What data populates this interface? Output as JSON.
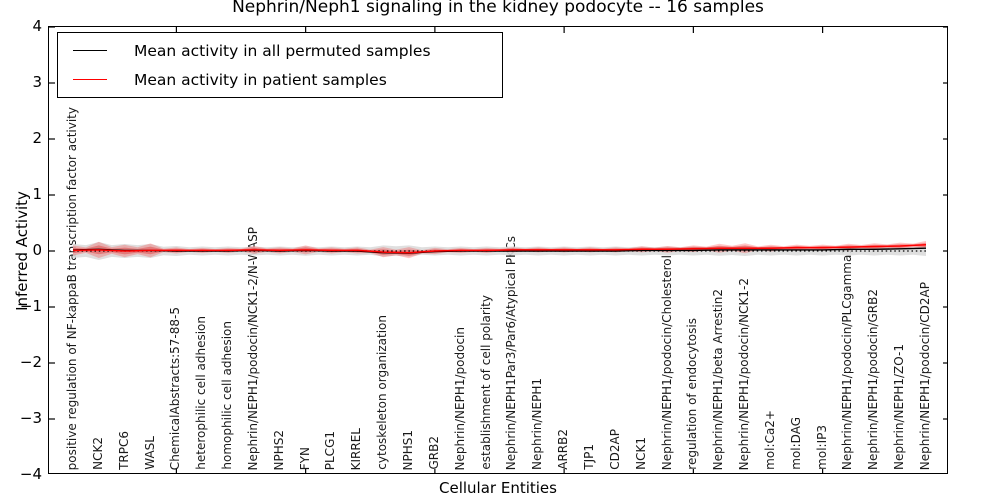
{
  "figure": {
    "title": "Nephrin/Neph1 signaling in the kidney podocyte -- 16 samples",
    "xlabel": "Cellular Entities",
    "ylabel": "Inferred Activity"
  },
  "legend": {
    "items": [
      {
        "label": "Mean activity in all permuted samples",
        "color": "#000000"
      },
      {
        "label": "Mean activity in patient samples",
        "color": "#ff0000"
      }
    ]
  },
  "colors": {
    "permuted_band": "#dcdcdc",
    "patient_fill": "#ff0000",
    "patient_line": "#ff0000",
    "permuted_line": "#000000",
    "zero_line": "#000000",
    "axis": "#000000"
  },
  "chart_data": {
    "type": "line",
    "subtype": "violin-band-with-mean-lines",
    "title": "Nephrin/Neph1 signaling in the kidney podocyte -- 16 samples",
    "xlabel": "Cellular Entities",
    "ylabel": "Inferred Activity",
    "ylim": [
      -4,
      4
    ],
    "yticks": [
      "4",
      "3",
      "2",
      "1",
      "0",
      "−1",
      "−2",
      "−3",
      "−4"
    ],
    "ytick_values": [
      4,
      3,
      2,
      1,
      0,
      -1,
      -2,
      -3,
      -4
    ],
    "xtick_values": [
      5,
      10,
      15,
      20,
      25,
      30
    ],
    "grid": false,
    "legend_position": "upper left",
    "zero_reference_line": {
      "y": 0,
      "style": "dotted",
      "color": "#000000"
    },
    "categories": [
      "positive regulation of NF-kappaB transcription factor activity",
      "NCK2",
      "TRPC6",
      "WASL",
      "ChemicalAbstracts:57-88-5",
      "heterophilic cell adhesion",
      "homophilic cell adhesion",
      "Nephrin/NEPH1/podocin/NCK1-2/N-WASP",
      "NPHS2",
      "FYN",
      "PLCG1",
      "KIRREL",
      "cytoskeleton organization",
      "NPHS1",
      "GRB2",
      "Nephrin/NEPH1/podocin",
      "establishment of cell polarity",
      "Nephrin/NEPH1Par3/Par6/Atypical PKCs",
      "Nephrin/NEPH1",
      "ARRB2",
      "TJP1",
      "CD2AP",
      "NCK1",
      "Nephrin/NEPH1/podocin/Cholesterol",
      "regulation of endocytosis",
      "Nephrin/NEPH1/beta Arrestin2",
      "Nephrin/NEPH1/podocin/NCK1-2",
      "mol:Ca2+",
      "mol:DAG",
      "mol:IP3",
      "Nephrin/NEPH1/podocin/PLCgamma1",
      "Nephrin/NEPH1/podocin/GRB2",
      "Nephrin/NEPH1/ZO-1",
      "Nephrin/NEPH1/podocin/CD2AP"
    ],
    "series": [
      {
        "name": "Mean activity in all permuted samples",
        "color": "#000000",
        "values": [
          0.02,
          0.03,
          0.01,
          0.01,
          0,
          0,
          0,
          0.01,
          0,
          0.01,
          0,
          0,
          -0.03,
          -0.04,
          -0.01,
          0,
          0,
          0,
          0,
          0,
          0,
          0,
          0.01,
          0.01,
          0.01,
          0.02,
          0.02,
          0.02,
          0.02,
          0.02,
          0.03,
          0.03,
          0.04,
          0.05
        ]
      },
      {
        "name": "Mean activity in patient samples",
        "color": "#ff0000",
        "values": [
          0.01,
          0.02,
          0,
          0.01,
          0.01,
          0.01,
          0.01,
          0.02,
          0.01,
          0.02,
          0.01,
          0.01,
          -0.02,
          -0.03,
          0,
          0.01,
          0.01,
          0.02,
          0.02,
          0.02,
          0.02,
          0.02,
          0.03,
          0.03,
          0.04,
          0.05,
          0.05,
          0.05,
          0.06,
          0.06,
          0.07,
          0.08,
          0.09,
          0.11
        ]
      }
    ],
    "patient_spread": [
      0.09,
      0.145,
      0.11,
      0.125,
      0.055,
      0.045,
      0.045,
      0.07,
      0.055,
      0.08,
      0.055,
      0.055,
      0.09,
      0.1,
      0.055,
      0.045,
      0.045,
      0.045,
      0.045,
      0.045,
      0.045,
      0.045,
      0.055,
      0.06,
      0.06,
      0.08,
      0.09,
      0.06,
      0.055,
      0.055,
      0.06,
      0.06,
      0.06,
      0.07
    ],
    "permuted_spread": [
      0.125,
      0.16,
      0.125,
      0.125,
      0.09,
      0.08,
      0.08,
      0.08,
      0.08,
      0.085,
      0.08,
      0.08,
      0.1,
      0.1,
      0.08,
      0.08,
      0.08,
      0.08,
      0.08,
      0.08,
      0.08,
      0.08,
      0.08,
      0.08,
      0.08,
      0.085,
      0.09,
      0.08,
      0.08,
      0.08,
      0.08,
      0.08,
      0.08,
      0.09
    ]
  }
}
